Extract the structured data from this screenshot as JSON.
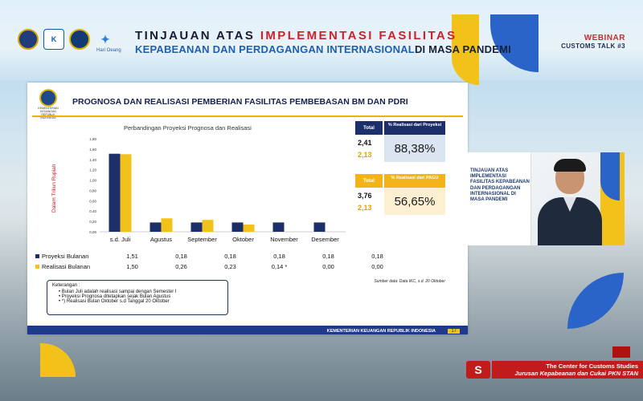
{
  "header": {
    "logos": [
      {
        "name": "kemenkeu-logo"
      },
      {
        "name": "kemenkeu-kuat-logo"
      },
      {
        "name": "bea-cukai-logo"
      },
      {
        "name": "hari-oeang-logo",
        "caption": "Hari Oeang"
      }
    ],
    "title_line1_prefix": "TINJAUAN ATAS ",
    "title_line1_highlight": "IMPLEMENTASI FASILITAS",
    "title_line2_prefix": "KEPABEANAN DAN PERDAGANGAN INTERNASIONAL",
    "title_line2_suffix": "DI MASA PANDEMI",
    "webinar_label": "WEBINAR",
    "webinar_sub": "CUSTOMS TALK #3"
  },
  "slide": {
    "logo_caption": "KEMENTERIAN KEUANGAN REPUBLIK INDONESIA",
    "title": "PROGNOSA DAN REALISASI PEMBERIAN FASILITAS PEMBEBASAN BM DAN PDRI",
    "box1": {
      "head_total": "Total",
      "head_pct": "% Realisasi dari Proyeksi",
      "value_top": "2,41",
      "value_bottom": "2,13",
      "pct": "88,38%"
    },
    "box2": {
      "head_total": "Total",
      "head_pct": "% Realisasi dari PAGU",
      "value_top": "3,76",
      "value_bottom": "2,13",
      "pct": "56,65%"
    },
    "source": "Sumber data: Data IKC, s.d. 20 Oktober",
    "note_title": "Keterangan :",
    "notes": [
      "Bulan Juli adalah realisasi sampai dengan Semester I",
      "Proyeksi Prognosa ditetapkan sejak Bulan Agustus",
      "*) Realisasi Bulan Oktober s.d Tanggal 20 Oktober"
    ],
    "footer": "KEMENTERIAN KEUANGAN REPUBLIK INDONESIA",
    "page_number": "17"
  },
  "chart_data": {
    "type": "bar",
    "title": "Perbandingan Proyeksi Prognosa dan Realisasi",
    "ylabel": "Dalam Triliun Rupiah",
    "ylim": [
      0,
      1.8
    ],
    "yticks": [
      "0,00",
      "0,20",
      "0,40",
      "0,60",
      "0,80",
      "1,00",
      "1,20",
      "1,40",
      "1,60",
      "1,80"
    ],
    "categories": [
      "s.d. Juli",
      "Agustus",
      "September",
      "Oktober",
      "November",
      "Desember"
    ],
    "series": [
      {
        "name": "Proyeksi Bulanan",
        "color": "#1d2f6b",
        "values": [
          1.51,
          0.18,
          0.18,
          0.18,
          0.18,
          0.18
        ],
        "labels": [
          "1,51",
          "0,18",
          "0,18",
          "0,18",
          "0,18",
          "0,18"
        ]
      },
      {
        "name": "Realisasi Bulanan",
        "color": "#f3c21a",
        "values": [
          1.5,
          0.26,
          0.23,
          0.14,
          0.0,
          0.0
        ],
        "labels": [
          "1,50",
          "0,26",
          "0,23",
          "0,14 *",
          "0,00",
          "0,00"
        ]
      }
    ],
    "legend": "bottom-table"
  },
  "video": {
    "poster_text": "TINJAUAN ATAS IMPLEMENTASI FASILITAS KEPABEANAN DAN PERDAGANGAN INTERNASIONAL DI MASA PANDEMI"
  },
  "banner": {
    "line1": "The Center for Customs Studies",
    "line2": "Jurusan Kepabeanan dan Cukai PKN STAN"
  }
}
